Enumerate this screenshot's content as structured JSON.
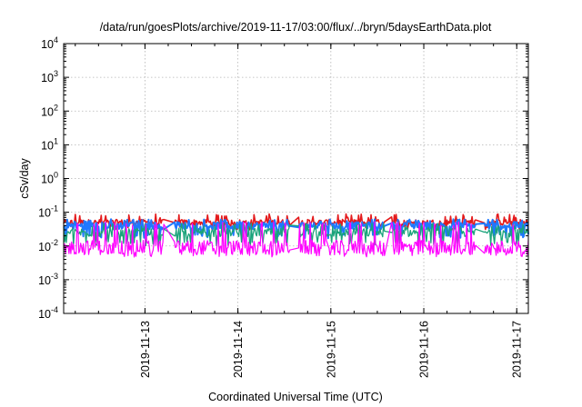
{
  "chart_data": {
    "type": "line",
    "title": "/data/run/goesPlots/archive/2019-11-17/03:00/flux/../bryn/5daysEarthData.plot",
    "xlabel": "Coordinated Universal Time (UTC)",
    "ylabel": "cSv/day",
    "yscale": "log",
    "ylim": [
      0.0001,
      10000
    ],
    "y_ticks": [
      {
        "value": 0.0001,
        "base": "10",
        "exp": "-4"
      },
      {
        "value": 0.001,
        "base": "10",
        "exp": "-3"
      },
      {
        "value": 0.01,
        "base": "10",
        "exp": "-2"
      },
      {
        "value": 0.1,
        "base": "10",
        "exp": "-1"
      },
      {
        "value": 1,
        "base": "10",
        "exp": "0"
      },
      {
        "value": 10,
        "base": "10",
        "exp": "1"
      },
      {
        "value": 100,
        "base": "10",
        "exp": "2"
      },
      {
        "value": 1000,
        "base": "10",
        "exp": "3"
      },
      {
        "value": 10000,
        "base": "10",
        "exp": "4"
      }
    ],
    "xlim": [
      "2019-11-12 03:00",
      "2019-11-17 03:00"
    ],
    "x_ticks": [
      "2019-11-13",
      "2019-11-14",
      "2019-11-15",
      "2019-11-16",
      "2019-11-17"
    ],
    "grid": true,
    "data_gaps": [
      [
        "2019-11-13 05:00",
        "2019-11-13 07:30"
      ],
      [
        "2019-11-14 13:30",
        "2019-11-14 15:30"
      ],
      [
        "2019-11-15 14:00",
        "2019-11-15 15:30"
      ],
      [
        "2019-11-16 13:30",
        "2019-11-16 15:30"
      ]
    ],
    "series": [
      {
        "color": "#e41a1c",
        "typical": 0.05,
        "low": 0.035,
        "high": 0.085
      },
      {
        "color": "#1f78ff",
        "typical": 0.04,
        "low": 0.02,
        "high": 0.06
      },
      {
        "color": "#1aa37a",
        "typical": 0.025,
        "low": 0.012,
        "high": 0.045
      },
      {
        "color": "#ff00ff",
        "typical": 0.009,
        "low": 0.0055,
        "high": 0.05
      }
    ]
  }
}
